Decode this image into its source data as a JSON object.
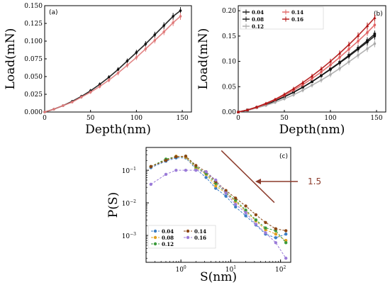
{
  "colors": {
    "a_series_0": "#111111",
    "a_series_1": "#e07a7a",
    "b_004": "#111111",
    "b_008": "#111111",
    "b_012": "#aaaaaa",
    "b_014": "#e06060",
    "b_016": "#b01010",
    "c_004": "#3b7dc4",
    "c_008": "#e0a020",
    "c_012": "#3a9a3a",
    "c_014": "#8b4513",
    "c_016": "#9a7ad8",
    "annotation": "#8b3a2a"
  },
  "chart_data": [
    {
      "type": "line",
      "panel_label": "(a)",
      "xlabel": "Depth(nm)",
      "ylabel": "Load(mN)",
      "xlim": [
        0,
        160
      ],
      "ylim": [
        0,
        0.15
      ],
      "xticks": [
        0,
        50,
        100,
        150
      ],
      "xtick_labels": [
        "0",
        "50",
        "100",
        "150"
      ],
      "yticks": [
        0,
        0.025,
        0.05,
        0.075,
        0.1,
        0.125,
        0.15
      ],
      "ytick_labels": [
        "0.000",
        "0.025",
        "0.050",
        "0.075",
        "0.100",
        "0.125",
        "0.150"
      ],
      "grid": false,
      "series": [
        {
          "x": [
            0,
            10,
            20,
            30,
            40,
            50,
            60,
            70,
            80,
            90,
            100,
            110,
            120,
            130,
            140,
            148
          ],
          "y": [
            0,
            0.004,
            0.009,
            0.015,
            0.022,
            0.03,
            0.039,
            0.049,
            0.06,
            0.072,
            0.084,
            0.096,
            0.109,
            0.122,
            0.135,
            0.143
          ]
        },
        {
          "x": [
            0,
            10,
            20,
            30,
            40,
            50,
            60,
            70,
            80,
            90,
            100,
            110,
            120,
            130,
            140,
            148
          ],
          "y": [
            0,
            0.004,
            0.009,
            0.014,
            0.021,
            0.028,
            0.036,
            0.045,
            0.055,
            0.066,
            0.077,
            0.089,
            0.101,
            0.113,
            0.126,
            0.135
          ]
        }
      ]
    },
    {
      "type": "line",
      "panel_label": "(b)",
      "xlabel": "Depth(nm)",
      "ylabel": "Load(mN)",
      "xlim": [
        0,
        160
      ],
      "ylim": [
        0,
        0.21
      ],
      "xticks": [
        0,
        50,
        100,
        150
      ],
      "xtick_labels": [
        "0",
        "50",
        "100",
        "150"
      ],
      "yticks": [
        0,
        0.05,
        0.1,
        0.15,
        0.2
      ],
      "ytick_labels": [
        "0.00",
        "0.05",
        "0.10",
        "0.15",
        "0.20"
      ],
      "grid": false,
      "legend": "top-left",
      "series": [
        {
          "name": "0.04",
          "x": [
            0,
            10,
            20,
            30,
            40,
            50,
            60,
            70,
            80,
            90,
            100,
            110,
            120,
            130,
            140,
            148
          ],
          "y": [
            0,
            0.004,
            0.009,
            0.015,
            0.022,
            0.03,
            0.039,
            0.049,
            0.06,
            0.072,
            0.084,
            0.097,
            0.11,
            0.124,
            0.138,
            0.15
          ]
        },
        {
          "name": "0.08",
          "x": [
            0,
            10,
            20,
            30,
            40,
            50,
            60,
            70,
            80,
            90,
            100,
            110,
            120,
            130,
            140,
            148
          ],
          "y": [
            0,
            0.004,
            0.009,
            0.015,
            0.022,
            0.03,
            0.039,
            0.049,
            0.06,
            0.072,
            0.085,
            0.098,
            0.112,
            0.126,
            0.141,
            0.154
          ]
        },
        {
          "name": "0.12",
          "x": [
            0,
            10,
            20,
            30,
            40,
            50,
            60,
            70,
            80,
            90,
            100,
            110,
            120,
            130,
            140,
            148
          ],
          "y": [
            0,
            0.003,
            0.008,
            0.013,
            0.019,
            0.026,
            0.034,
            0.043,
            0.053,
            0.063,
            0.074,
            0.086,
            0.099,
            0.112,
            0.125,
            0.135
          ]
        },
        {
          "name": "0.14",
          "x": [
            0,
            10,
            20,
            30,
            40,
            50,
            60,
            70,
            80,
            90,
            100,
            110,
            120,
            130,
            140,
            148
          ],
          "y": [
            0,
            0.004,
            0.009,
            0.016,
            0.024,
            0.033,
            0.043,
            0.054,
            0.066,
            0.079,
            0.093,
            0.108,
            0.124,
            0.14,
            0.157,
            0.172
          ]
        },
        {
          "name": "0.16",
          "x": [
            0,
            10,
            20,
            30,
            40,
            50,
            60,
            70,
            80,
            90,
            100,
            110,
            120,
            130,
            140,
            148
          ],
          "y": [
            0,
            0.004,
            0.01,
            0.017,
            0.025,
            0.035,
            0.046,
            0.058,
            0.071,
            0.085,
            0.1,
            0.116,
            0.133,
            0.151,
            0.17,
            0.186
          ]
        }
      ]
    },
    {
      "type": "line",
      "panel_label": "(c)",
      "xlabel": "S(nm)",
      "ylabel": "P(S)",
      "xscale": "log",
      "yscale": "log",
      "xlim": [
        0.2,
        160
      ],
      "ylim": [
        0.00015,
        0.5
      ],
      "xtick_values": [
        1,
        10,
        100
      ],
      "xtick_bases": [
        "10",
        "10",
        "10"
      ],
      "xtick_exps": [
        "0",
        "1",
        "2"
      ],
      "ytick_values": [
        0.001,
        0.01,
        0.1
      ],
      "ytick_bases": [
        "10",
        "10",
        "10"
      ],
      "ytick_exps": [
        "−3",
        "−2",
        "−1"
      ],
      "grid": false,
      "legend": "bottom-left",
      "annotation": {
        "text": "1.5",
        "slope": -1.5
      },
      "series": [
        {
          "name": "0.04",
          "x": [
            0.25,
            0.5,
            0.8,
            1.25,
            2,
            3.2,
            5,
            8,
            12.5,
            20,
            32,
            50,
            80,
            128
          ],
          "y": [
            0.12,
            0.19,
            0.24,
            0.24,
            0.11,
            0.06,
            0.028,
            0.016,
            0.0075,
            0.004,
            0.0021,
            0.0011,
            0.00085,
            0.0011
          ]
        },
        {
          "name": "0.08",
          "x": [
            0.25,
            0.5,
            0.8,
            1.25,
            2,
            3.2,
            5,
            8,
            12.5,
            20,
            32,
            50,
            80,
            128
          ],
          "y": [
            0.13,
            0.21,
            0.27,
            0.25,
            0.12,
            0.075,
            0.033,
            0.02,
            0.011,
            0.0055,
            0.0028,
            0.0015,
            0.0011,
            0.0007
          ]
        },
        {
          "name": "0.12",
          "x": [
            0.25,
            0.5,
            0.8,
            1.25,
            2,
            3.2,
            5,
            8,
            12.5,
            20,
            32,
            50,
            80,
            128
          ],
          "y": [
            0.13,
            0.22,
            0.26,
            0.27,
            0.13,
            0.08,
            0.04,
            0.021,
            0.012,
            0.006,
            0.003,
            0.0017,
            0.0014,
            0.0006
          ]
        },
        {
          "name": "0.14",
          "x": [
            0.25,
            0.5,
            0.8,
            1.25,
            2,
            3.2,
            5,
            8,
            12.5,
            20,
            32,
            50,
            80,
            128
          ],
          "y": [
            0.13,
            0.2,
            0.26,
            0.27,
            0.14,
            0.09,
            0.045,
            0.024,
            0.014,
            0.008,
            0.0043,
            0.0025,
            0.0016,
            0.0014
          ]
        },
        {
          "name": "0.16",
          "x": [
            0.25,
            0.5,
            0.8,
            1.25,
            2,
            3.2,
            5,
            8,
            12.5,
            20,
            32,
            50,
            80,
            128
          ],
          "y": [
            0.037,
            0.075,
            0.1,
            0.1,
            0.1,
            0.09,
            0.05,
            0.02,
            0.009,
            0.005,
            0.0022,
            0.0012,
            0.0006,
            0.0002
          ]
        }
      ]
    }
  ]
}
